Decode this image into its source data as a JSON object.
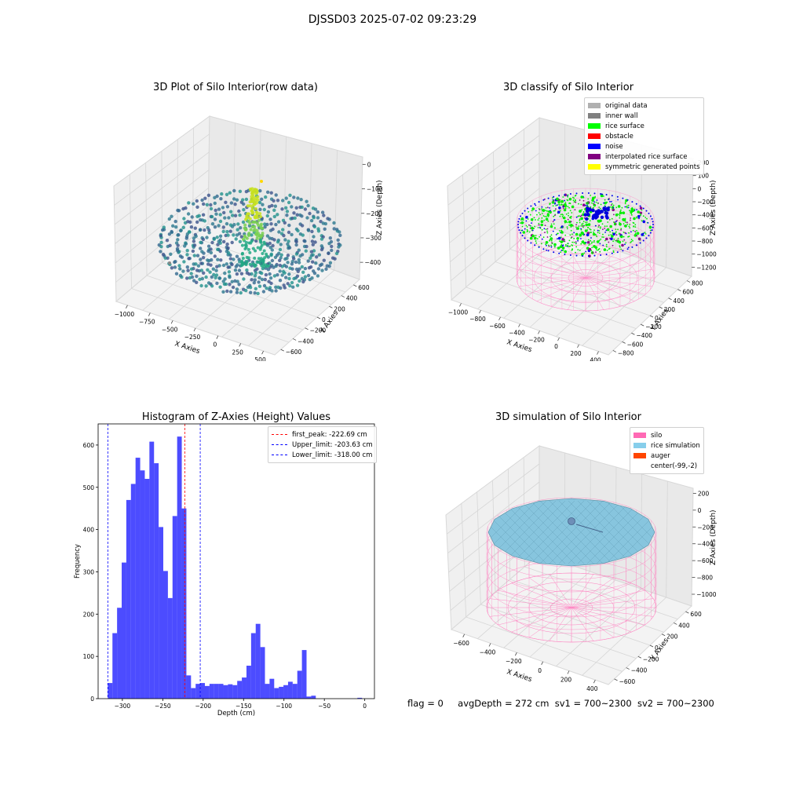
{
  "figure_title": "DJSSD03 2025-07-02 09:23:29",
  "panels": {
    "raw": {
      "title": "3D Plot of Silo Interior(row data)",
      "xlabel": "X Axies",
      "ylabel": "Y Axies",
      "zlabel": "Z Axies (Depth)",
      "x_ticks": [
        "−1000",
        "−750",
        "−500",
        "−250",
        "0",
        "250",
        "500"
      ],
      "y_ticks": [
        "−600",
        "−400",
        "−200",
        "0",
        "200",
        "400",
        "600"
      ],
      "z_ticks": [
        "0",
        "−100",
        "−200",
        "−300",
        "−400"
      ]
    },
    "classify": {
      "title": "3D classify of Silo Interior",
      "xlabel": "X Axies",
      "ylabel": "Y Axies",
      "zlabel": "Z Axies (Depth)",
      "x_ticks": [
        "−1000",
        "−800",
        "−600",
        "−400",
        "−200",
        "0",
        "200",
        "400"
      ],
      "y_ticks": [
        "−800",
        "−600",
        "−400",
        "−200",
        "0",
        "200",
        "400",
        "600",
        "800"
      ],
      "z_ticks": [
        "200",
        "100",
        "0",
        "−200",
        "−400",
        "−600",
        "−800",
        "−1000",
        "−1200"
      ],
      "legend": [
        {
          "label": "original data",
          "color": "#b0b0b0"
        },
        {
          "label": "inner wall",
          "color": "#808080"
        },
        {
          "label": "rice surface",
          "color": "#00ff00"
        },
        {
          "label": "obstacle",
          "color": "#ff0000"
        },
        {
          "label": "noise",
          "color": "#0000ff"
        },
        {
          "label": "interpolated rice surface",
          "color": "#800080"
        },
        {
          "label": "symmetric generated points",
          "color": "#ffff00"
        }
      ]
    },
    "histogram": {
      "title": "Histogram of Z-Axies (Height) Values",
      "xlabel": "Depth (cm)",
      "ylabel": "Frequency",
      "legend": [
        {
          "label": "first_peak: -222.69 cm",
          "color": "#ff0000"
        },
        {
          "label": "Upper_limit: -203.63 cm",
          "color": "#0000ff"
        },
        {
          "label": "Lower_limit: -318.00 cm",
          "color": "#0000ff"
        }
      ]
    },
    "simulation": {
      "title": "3D simulation of Silo Interior",
      "xlabel": "X Axies",
      "ylabel": "Y Axies",
      "zlabel": "Z Axies (Depth)",
      "x_ticks": [
        "−600",
        "−400",
        "−200",
        "0",
        "200",
        "400"
      ],
      "y_ticks": [
        "−600",
        "−400",
        "−200",
        "0",
        "200",
        "400",
        "600"
      ],
      "z_ticks": [
        "200",
        "0",
        "−200",
        "−400",
        "−600",
        "−800",
        "−1000"
      ],
      "legend": [
        {
          "label": "silo",
          "color": "#ff69b4"
        },
        {
          "label": "rice simulation",
          "color": "#87ceeb"
        },
        {
          "label": "auger",
          "color": "#ff4500"
        },
        {
          "label": "center(-99,-2)",
          "color": ""
        }
      ]
    }
  },
  "footer": {
    "flag": "flag = 0",
    "avg_depth": "avgDepth = 272 cm",
    "sv1": "sv1 = 700~2300",
    "sv2": "sv2 = 700~2300"
  },
  "chart_data": [
    {
      "type": "bar",
      "title": "Histogram of Z-Axies (Height) Values",
      "xlabel": "Depth (cm)",
      "ylabel": "Frequency",
      "xlim": [
        -330,
        12
      ],
      "ylim": [
        0,
        650
      ],
      "x_ticks": [
        -300,
        -250,
        -200,
        -150,
        -100,
        -50,
        0
      ],
      "y_ticks": [
        0,
        100,
        200,
        300,
        400,
        500,
        600
      ],
      "bin_start": -318,
      "bin_width": 5.72,
      "values": [
        37,
        155,
        215,
        322,
        470,
        508,
        570,
        540,
        520,
        608,
        557,
        406,
        302,
        238,
        432,
        620,
        450,
        55,
        25,
        35,
        37,
        30,
        35,
        35,
        35,
        32,
        34,
        32,
        42,
        50,
        78,
        155,
        177,
        122,
        35,
        47,
        25,
        28,
        32,
        40,
        35,
        66,
        115,
        5,
        7,
        0,
        0,
        0,
        0,
        0,
        0,
        0,
        0,
        0,
        2,
        0
      ],
      "vlines": [
        {
          "x": -222.69,
          "label": "first_peak: -222.69 cm",
          "color": "#ff0000"
        },
        {
          "x": -203.63,
          "label": "Upper_limit: -203.63 cm",
          "color": "#0000ff"
        },
        {
          "x": -318.0,
          "label": "Lower_limit: -318.00 cm",
          "color": "#0000ff"
        }
      ],
      "bar_color": "#0000ff",
      "legend_position": "top-right",
      "grid": false
    }
  ]
}
